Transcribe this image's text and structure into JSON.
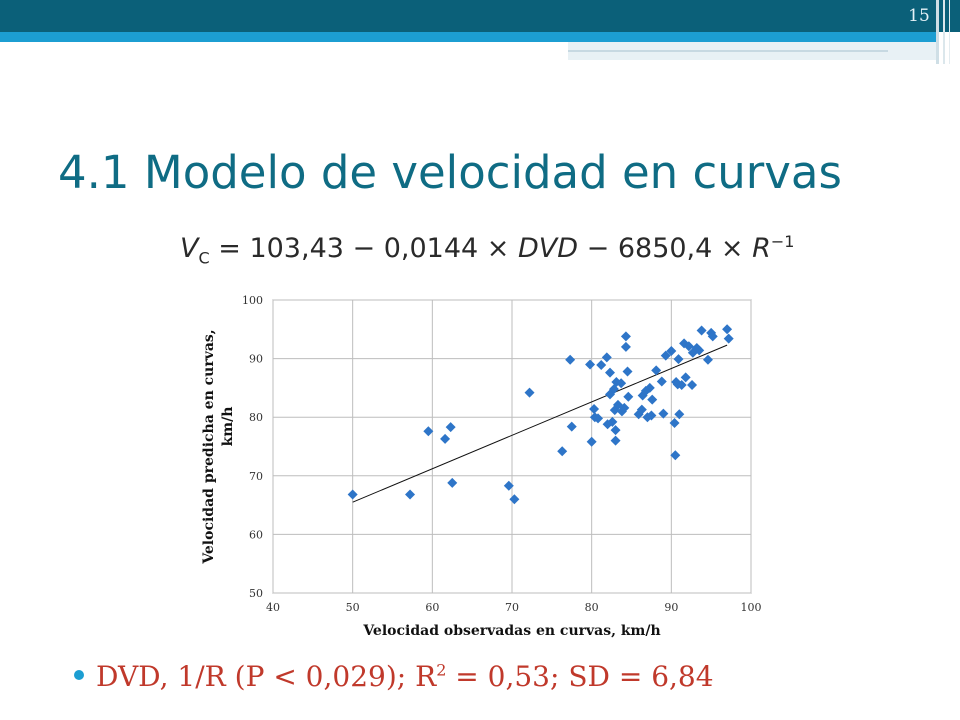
{
  "slide": {
    "number": "15",
    "title": "4.1 Modelo de velocidad en curvas",
    "formula": {
      "lhs": "V",
      "lhs_sub": "C",
      "rhs": "= 103,43 − 0,0144 × ",
      "var1": "DVD",
      "mid": " − 6850,4 × ",
      "var2": "R",
      "exp": "−1"
    },
    "bullet": {
      "pre": "DVD, 1/R (P < 0,029); R",
      "sup": "2",
      "post": " = 0,53; SD = 6,84"
    }
  },
  "colors": {
    "header_dark": "#0b6079",
    "header_light": "#1c9ed2",
    "title": "#0f6c84",
    "bullet_text": "#c0392b",
    "points": "#2e75c8"
  },
  "chart_data": {
    "type": "scatter",
    "xlabel": "Velocidad observadas en curvas, km/h",
    "ylabel_line1": "Velocidad predicha en curvas,",
    "ylabel_line2": "km/h",
    "xlim": [
      40,
      100
    ],
    "ylim": [
      50,
      100
    ],
    "xticks": [
      40,
      50,
      60,
      70,
      80,
      90,
      100
    ],
    "yticks": [
      50,
      60,
      70,
      80,
      90,
      100
    ],
    "grid": true,
    "marker": "diamond",
    "trendline": {
      "x": [
        50,
        97
      ],
      "y": [
        65.5,
        92.3
      ]
    },
    "points": [
      {
        "x": 50,
        "y": 66.8
      },
      {
        "x": 57.2,
        "y": 66.8
      },
      {
        "x": 59.5,
        "y": 77.6
      },
      {
        "x": 61.6,
        "y": 76.3
      },
      {
        "x": 62.3,
        "y": 78.3
      },
      {
        "x": 62.5,
        "y": 68.8
      },
      {
        "x": 69.6,
        "y": 68.3
      },
      {
        "x": 70.3,
        "y": 66.0
      },
      {
        "x": 72.2,
        "y": 84.2
      },
      {
        "x": 76.3,
        "y": 74.2
      },
      {
        "x": 77.3,
        "y": 89.8
      },
      {
        "x": 77.5,
        "y": 78.4
      },
      {
        "x": 79.8,
        "y": 89.0
      },
      {
        "x": 80.0,
        "y": 75.8
      },
      {
        "x": 80.3,
        "y": 81.4
      },
      {
        "x": 80.4,
        "y": 80.0
      },
      {
        "x": 80.8,
        "y": 79.8
      },
      {
        "x": 81.2,
        "y": 88.9
      },
      {
        "x": 81.9,
        "y": 90.2
      },
      {
        "x": 82.0,
        "y": 78.8
      },
      {
        "x": 82.3,
        "y": 83.9
      },
      {
        "x": 82.3,
        "y": 87.6
      },
      {
        "x": 82.6,
        "y": 79.2
      },
      {
        "x": 82.8,
        "y": 84.8
      },
      {
        "x": 82.9,
        "y": 81.2
      },
      {
        "x": 83.0,
        "y": 76.0
      },
      {
        "x": 83.0,
        "y": 77.8
      },
      {
        "x": 83.1,
        "y": 86.0
      },
      {
        "x": 83.3,
        "y": 82.1
      },
      {
        "x": 83.7,
        "y": 85.8
      },
      {
        "x": 83.8,
        "y": 81.0
      },
      {
        "x": 84.1,
        "y": 81.6
      },
      {
        "x": 84.3,
        "y": 92.0
      },
      {
        "x": 84.3,
        "y": 93.8
      },
      {
        "x": 84.5,
        "y": 87.8
      },
      {
        "x": 84.6,
        "y": 83.5
      },
      {
        "x": 85.9,
        "y": 80.5
      },
      {
        "x": 86.3,
        "y": 81.3
      },
      {
        "x": 86.4,
        "y": 83.7
      },
      {
        "x": 86.8,
        "y": 84.5
      },
      {
        "x": 87.0,
        "y": 80.0
      },
      {
        "x": 87.3,
        "y": 85.0
      },
      {
        "x": 87.5,
        "y": 80.3
      },
      {
        "x": 87.6,
        "y": 83.0
      },
      {
        "x": 88.1,
        "y": 88.0
      },
      {
        "x": 88.8,
        "y": 86.1
      },
      {
        "x": 89.0,
        "y": 80.6
      },
      {
        "x": 89.3,
        "y": 90.5
      },
      {
        "x": 90.0,
        "y": 91.3
      },
      {
        "x": 90.4,
        "y": 79.0
      },
      {
        "x": 90.5,
        "y": 73.5
      },
      {
        "x": 90.6,
        "y": 86.0
      },
      {
        "x": 90.8,
        "y": 85.6
      },
      {
        "x": 90.9,
        "y": 89.9
      },
      {
        "x": 91.0,
        "y": 80.5
      },
      {
        "x": 91.3,
        "y": 85.5
      },
      {
        "x": 91.6,
        "y": 92.6
      },
      {
        "x": 91.8,
        "y": 86.8
      },
      {
        "x": 92.2,
        "y": 92.1
      },
      {
        "x": 92.6,
        "y": 85.5
      },
      {
        "x": 92.7,
        "y": 91.0
      },
      {
        "x": 93.2,
        "y": 91.8
      },
      {
        "x": 93.5,
        "y": 91.4
      },
      {
        "x": 93.8,
        "y": 94.8
      },
      {
        "x": 94.6,
        "y": 89.8
      },
      {
        "x": 95.0,
        "y": 94.4
      },
      {
        "x": 95.2,
        "y": 93.8
      },
      {
        "x": 97.0,
        "y": 95.0
      },
      {
        "x": 97.2,
        "y": 93.4
      }
    ]
  }
}
